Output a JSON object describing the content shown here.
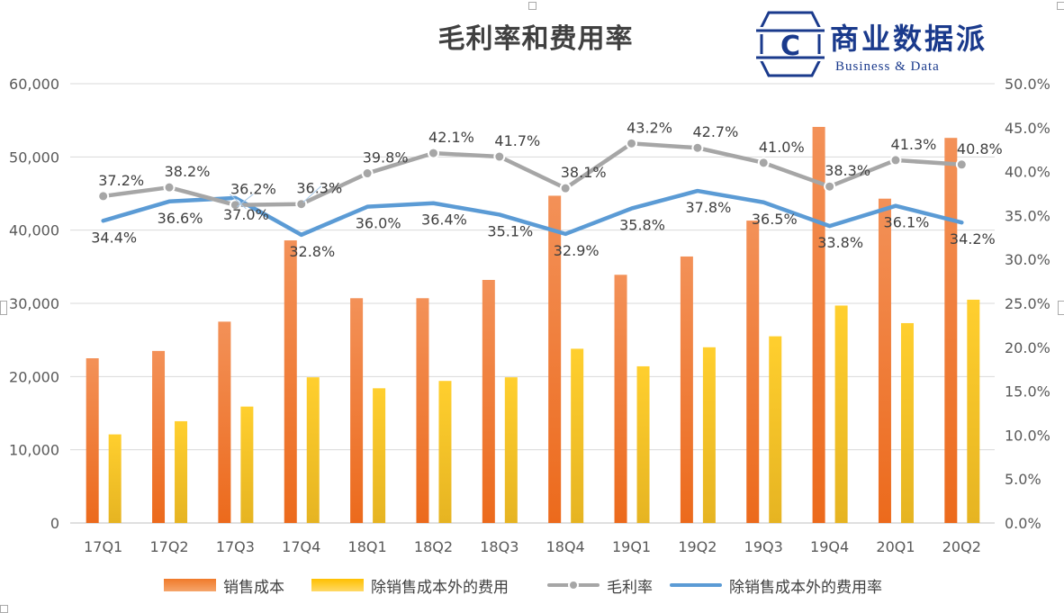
{
  "chart_data": {
    "type": "bar",
    "title": "毛利率和费用率",
    "categories": [
      "17Q1",
      "17Q2",
      "17Q3",
      "17Q4",
      "18Q1",
      "18Q2",
      "18Q3",
      "18Q4",
      "19Q1",
      "19Q2",
      "19Q3",
      "19Q4",
      "20Q1",
      "20Q2"
    ],
    "left_axis": {
      "ylim": [
        0,
        60000
      ],
      "ticks": [
        "0",
        "10,000",
        "20,000",
        "30,000",
        "40,000",
        "50,000",
        "60,000"
      ]
    },
    "right_axis": {
      "ylim": [
        0,
        50
      ],
      "ticks": [
        "0.0%",
        "5.0%",
        "10.0%",
        "15.0%",
        "20.0%",
        "25.0%",
        "30.0%",
        "35.0%",
        "40.0%",
        "45.0%",
        "50.0%"
      ]
    },
    "series": [
      {
        "name": "销售成本",
        "type": "bar",
        "axis": "left",
        "color": "#f07a2a",
        "values": [
          22500,
          23500,
          27500,
          38600,
          30700,
          30700,
          33200,
          44700,
          33900,
          36400,
          41300,
          54100,
          44300,
          52600
        ]
      },
      {
        "name": "除销售成本外的费用",
        "type": "bar",
        "axis": "left",
        "color": "#ffc000",
        "values": [
          12100,
          13900,
          15900,
          19900,
          18400,
          19400,
          19900,
          23800,
          21400,
          24000,
          25500,
          29700,
          27300,
          30500
        ]
      },
      {
        "name": "毛利率",
        "type": "line",
        "axis": "right",
        "color": "#a6a6a6",
        "values": [
          37.2,
          38.2,
          36.2,
          36.3,
          39.8,
          42.1,
          41.7,
          38.1,
          43.2,
          42.7,
          41.0,
          38.3,
          41.3,
          40.8
        ],
        "labels": [
          "37.2%",
          "38.2%",
          "36.2%",
          "36.3%",
          "39.8%",
          "42.1%",
          "41.7%",
          "38.1%",
          "43.2%",
          "42.7%",
          "41.0%",
          "38.3%",
          "41.3%",
          "40.8%"
        ]
      },
      {
        "name": "除销售成本外的费用率",
        "type": "line",
        "axis": "right",
        "color": "#5b9bd5",
        "values": [
          34.4,
          36.6,
          37.0,
          32.8,
          36.0,
          36.4,
          35.1,
          32.9,
          35.8,
          37.8,
          36.5,
          33.8,
          36.1,
          34.2
        ],
        "labels": [
          "34.4%",
          "36.6%",
          "37.0%",
          "32.8%",
          "36.0%",
          "36.4%",
          "35.1%",
          "32.9%",
          "35.8%",
          "37.8%",
          "36.5%",
          "33.8%",
          "36.1%",
          "34.2%"
        ]
      }
    ],
    "legend_position": "bottom",
    "grid": true
  },
  "logo": {
    "cn": "商业数据派",
    "en": "Business & Data",
    "mark": "C"
  }
}
